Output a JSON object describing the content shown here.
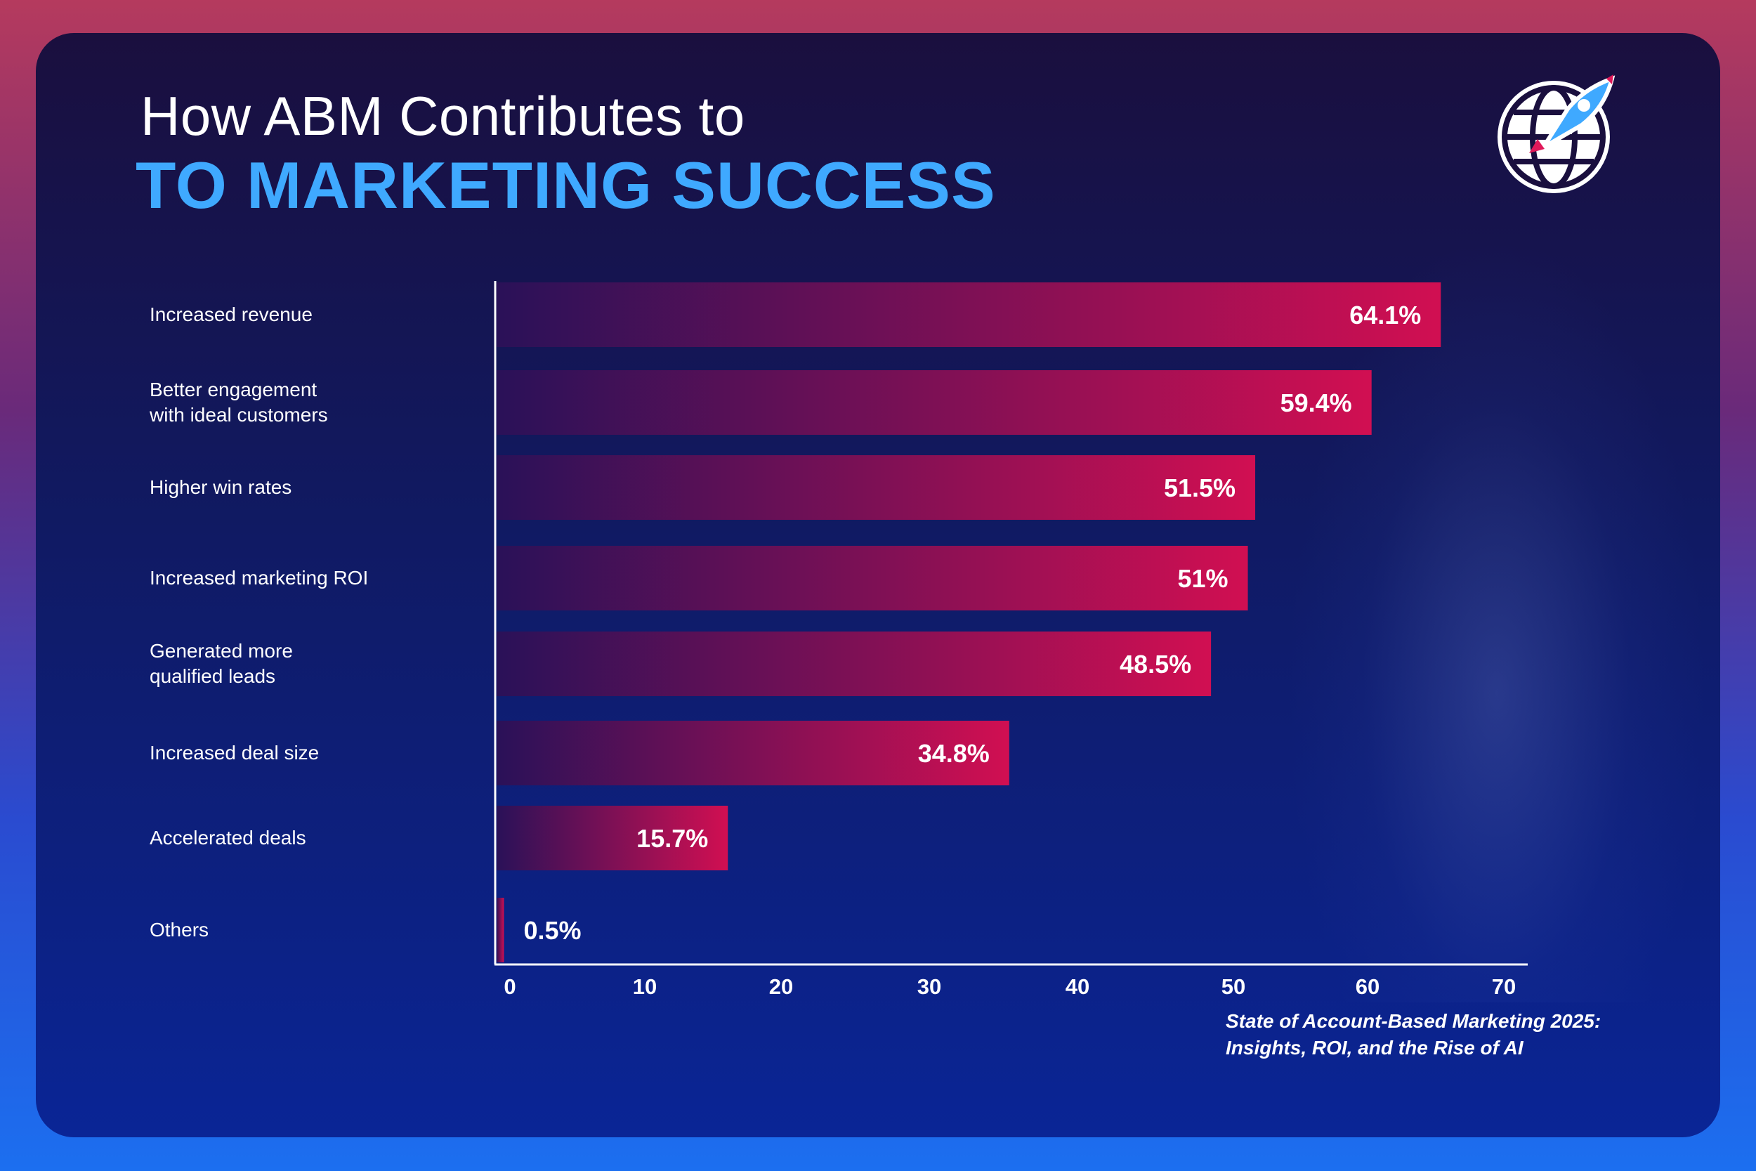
{
  "title_line1": "How ABM Contributes to",
  "title_line2": "TO MARKETING SUCCESS",
  "source": "State of Account-Based Marketing 2025:\nInsights, ROI, and the Rise of AI",
  "logo_icon": "globe-rocket-icon",
  "colors": {
    "bar_start": "#2a1158",
    "bar_end": "#d10f52",
    "accent": "#3fa9ff"
  },
  "chart_data": {
    "type": "bar",
    "orientation": "horizontal",
    "title": "How ABM Contributes to TO MARKETING SUCCESS",
    "categories": [
      "Increased revenue",
      "Better engagement\nwith ideal customers",
      "Higher win rates",
      "Increased marketing ROI",
      "Generated more\nqualified leads",
      "Increased deal size",
      "Accelerated deals",
      "Others"
    ],
    "values": [
      64.1,
      59.4,
      51.5,
      51,
      48.5,
      34.8,
      15.7,
      0.5
    ],
    "value_labels": [
      "64.1%",
      "59.4%",
      "51.5%",
      "51%",
      "48.5%",
      "34.8%",
      "15.7%",
      "0.5%"
    ],
    "xlim": [
      0,
      70
    ],
    "xticks": [
      0,
      10,
      20,
      30,
      40,
      50,
      60,
      70
    ],
    "xlabel": "",
    "ylabel": "",
    "grid": false
  }
}
